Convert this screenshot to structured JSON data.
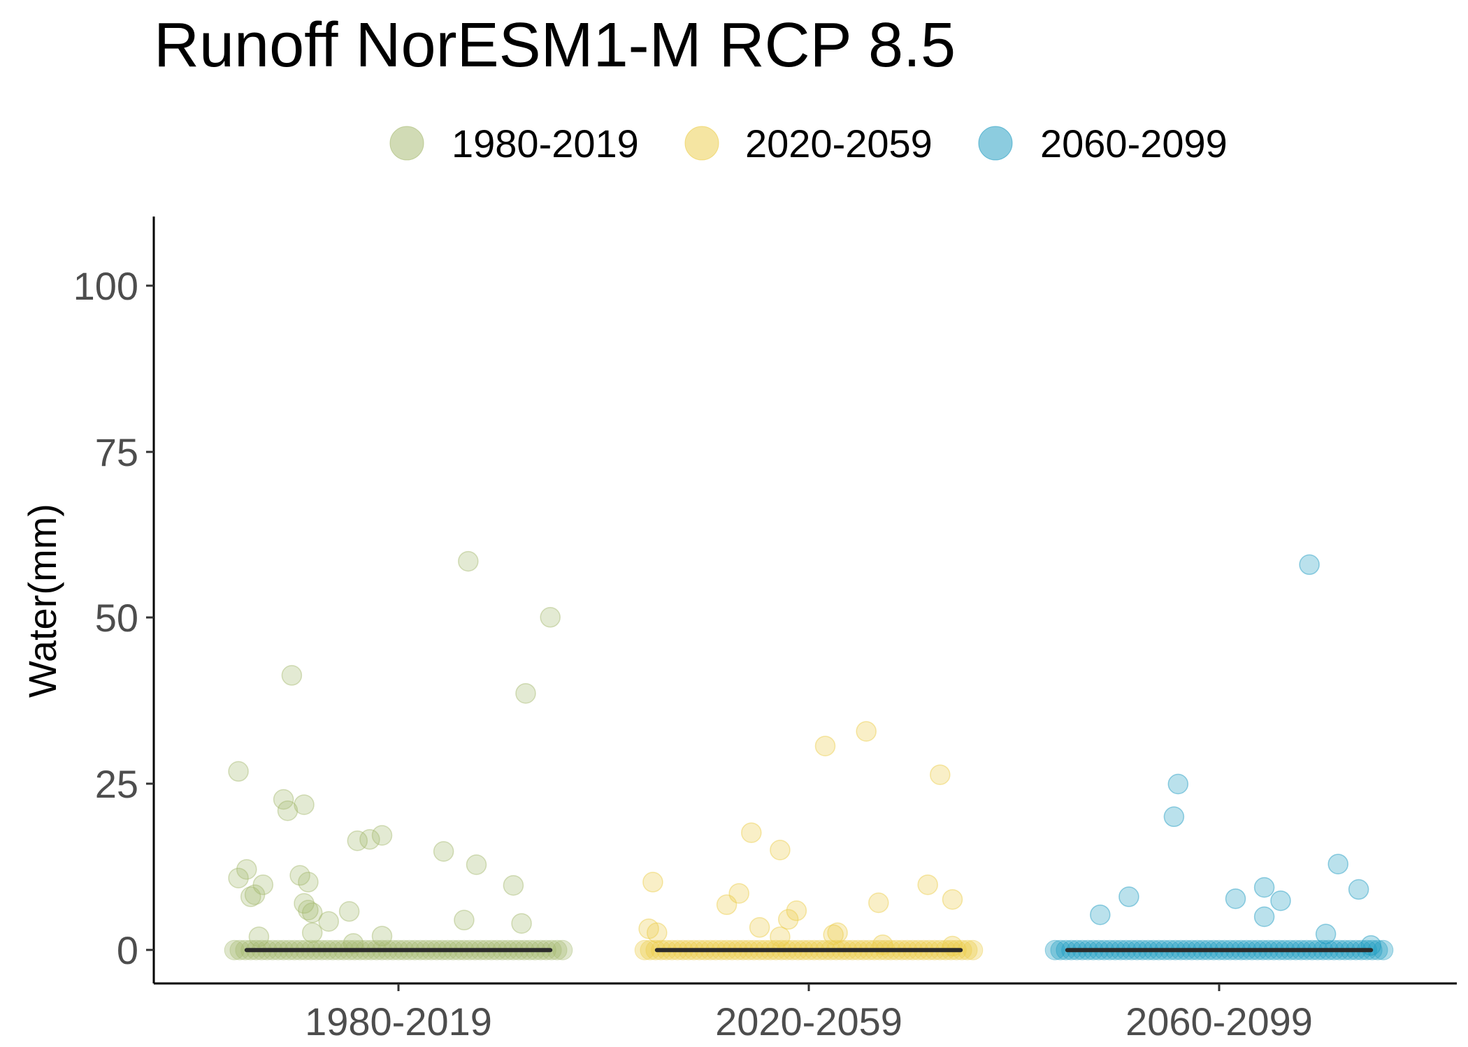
{
  "chart_data": {
    "type": "scatter",
    "title": "Runoff NorESM1-M RCP 8.5",
    "xlabel": "",
    "ylabel": "Water(mm)",
    "categories": [
      "1980-2019",
      "2020-2059",
      "2060-2099"
    ],
    "y_ticks": [
      "0",
      "25",
      "50",
      "75",
      "100"
    ],
    "ylim": [
      -5,
      110
    ],
    "grid": false,
    "legend_position": "top",
    "series": [
      {
        "name": "1980-2019",
        "color": "#a3b86c",
        "median": 0,
        "points": [
          [
            -0.39,
            26.8
          ],
          [
            -0.39,
            10.8
          ],
          [
            -0.37,
            12.1
          ],
          [
            -0.36,
            8.0
          ],
          [
            -0.35,
            8.3
          ],
          [
            -0.33,
            9.8
          ],
          [
            -0.34,
            2.0
          ],
          [
            -0.28,
            22.6
          ],
          [
            -0.27,
            20.9
          ],
          [
            -0.26,
            41.2
          ],
          [
            -0.24,
            11.2
          ],
          [
            -0.23,
            21.8
          ],
          [
            -0.22,
            10.2
          ],
          [
            -0.23,
            7.0
          ],
          [
            -0.22,
            6.0
          ],
          [
            -0.21,
            5.6
          ],
          [
            -0.21,
            2.6
          ],
          [
            -0.17,
            4.3
          ],
          [
            -0.12,
            5.8
          ],
          [
            -0.11,
            1.0
          ],
          [
            -0.1,
            16.4
          ],
          [
            -0.07,
            16.6
          ],
          [
            -0.04,
            17.2
          ],
          [
            -0.04,
            2.1
          ],
          [
            0.11,
            14.8
          ],
          [
            0.16,
            4.5
          ],
          [
            0.17,
            58.3
          ],
          [
            0.19,
            12.8
          ],
          [
            0.28,
            9.7
          ],
          [
            0.3,
            4.0
          ],
          [
            0.31,
            38.5
          ],
          [
            0.37,
            49.9
          ]
        ]
      },
      {
        "name": "2020-2059",
        "color": "#ebcb45",
        "median": 0,
        "points": [
          [
            -0.39,
            3.2
          ],
          [
            -0.38,
            10.2
          ],
          [
            -0.37,
            2.6
          ],
          [
            -0.2,
            6.8
          ],
          [
            -0.17,
            8.5
          ],
          [
            -0.14,
            17.6
          ],
          [
            -0.12,
            3.4
          ],
          [
            -0.07,
            15.0
          ],
          [
            -0.07,
            2.0
          ],
          [
            -0.05,
            4.6
          ],
          [
            -0.03,
            5.9
          ],
          [
            0.04,
            30.6
          ],
          [
            0.06,
            2.3
          ],
          [
            0.07,
            2.6
          ],
          [
            0.14,
            32.8
          ],
          [
            0.17,
            7.1
          ],
          [
            0.18,
            0.8
          ],
          [
            0.29,
            9.8
          ],
          [
            0.32,
            26.3
          ],
          [
            0.35,
            7.6
          ],
          [
            0.35,
            0.6
          ]
        ]
      },
      {
        "name": "2060-2099",
        "color": "#1a9ac0",
        "median": 0,
        "points": [
          [
            -0.29,
            5.3
          ],
          [
            -0.22,
            8.0
          ],
          [
            -0.11,
            20.0
          ],
          [
            -0.1,
            24.9
          ],
          [
            0.04,
            7.7
          ],
          [
            0.11,
            9.4
          ],
          [
            0.11,
            5.0
          ],
          [
            0.15,
            7.4
          ],
          [
            0.22,
            57.8
          ],
          [
            0.26,
            2.4
          ],
          [
            0.29,
            12.9
          ],
          [
            0.34,
            9.1
          ],
          [
            0.37,
            0.7
          ]
        ]
      }
    ]
  }
}
